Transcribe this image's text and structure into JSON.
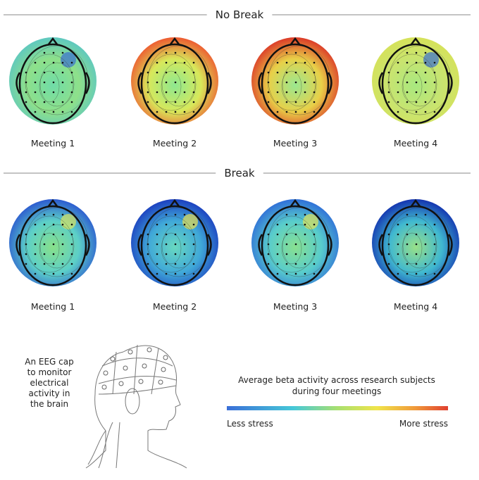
{
  "sections": [
    {
      "title": "No Break",
      "maps": [
        {
          "label": "Meeting 1"
        },
        {
          "label": "Meeting 2"
        },
        {
          "label": "Meeting 3"
        },
        {
          "label": "Meeting 4"
        }
      ]
    },
    {
      "title": "Break",
      "maps": [
        {
          "label": "Meeting 1"
        },
        {
          "label": "Meeting 2"
        },
        {
          "label": "Meeting 3"
        },
        {
          "label": "Meeting 4"
        }
      ]
    }
  ],
  "illustration": {
    "caption": [
      "An EEG cap",
      "to monitor",
      "electrical",
      "activity in",
      "the brain"
    ]
  },
  "legend": {
    "title": [
      "Average beta activity across research subjects",
      "during four meetings"
    ],
    "low_label": "Less stress",
    "high_label": "More stress"
  }
}
